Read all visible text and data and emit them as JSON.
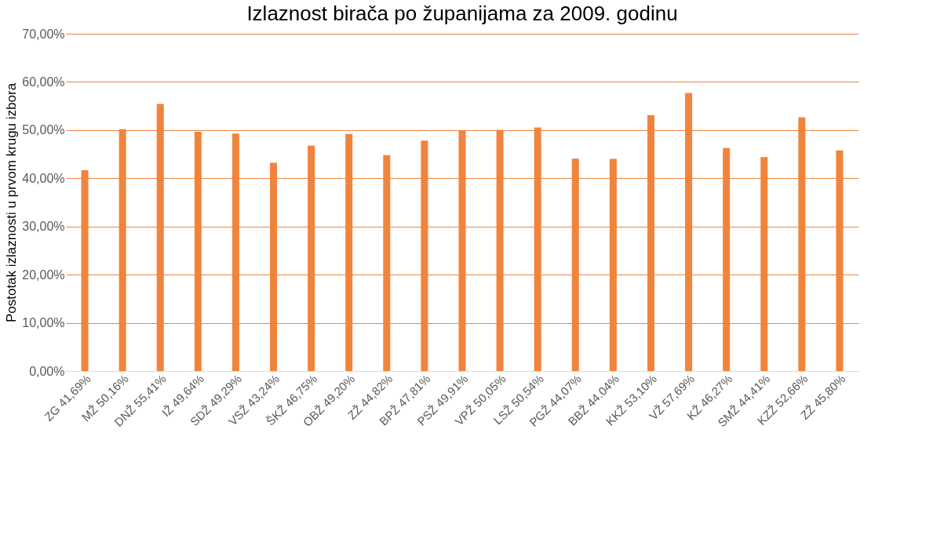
{
  "chart_data": {
    "type": "bar",
    "title": "Izlaznost birača po županijama za 2009. godinu",
    "ylabel": "Postotak izlaznosti u prvom krugu izbora",
    "categories": [
      "ZG 41,69%",
      "MŽ 50,16%",
      "DNŽ 55,41%",
      "IŽ 49,64%",
      "SDŽ 49,29%",
      "VSŽ 43,24%",
      "ŠKŽ 46,75%",
      "OBŽ 49,20%",
      "ZŽ 44,82%",
      "BPŽ 47,81%",
      "PSŽ 49,91%",
      "VPŽ 50,05%",
      "LSŽ 50,54%",
      "PGŽ 44,07%",
      "BBŽ 44.04%",
      "KKŽ 53,10%",
      "VŽ 57,69%",
      "KŽ 46,27%",
      "SMŽ 44,41%",
      "KZŽ 52,66%",
      "ZŽ 45,80%"
    ],
    "values": [
      41.69,
      50.16,
      55.41,
      49.64,
      49.29,
      43.24,
      46.75,
      49.2,
      44.82,
      47.81,
      49.91,
      50.05,
      50.54,
      44.07,
      44.04,
      53.1,
      57.69,
      46.27,
      44.41,
      52.66,
      45.8
    ],
    "color": "#f0843c",
    "ylim": [
      0,
      70
    ],
    "yticks": [
      {
        "value": 0,
        "label": "0,00%"
      },
      {
        "value": 10,
        "label": "10,00%"
      },
      {
        "value": 20,
        "label": "20,00%"
      },
      {
        "value": 30,
        "label": "30,00%"
      },
      {
        "value": 40,
        "label": "40,00%"
      },
      {
        "value": 50,
        "label": "50,00%"
      },
      {
        "value": 60,
        "label": "60,00%"
      },
      {
        "value": 70,
        "label": "70,00%"
      }
    ],
    "grid": "y"
  }
}
